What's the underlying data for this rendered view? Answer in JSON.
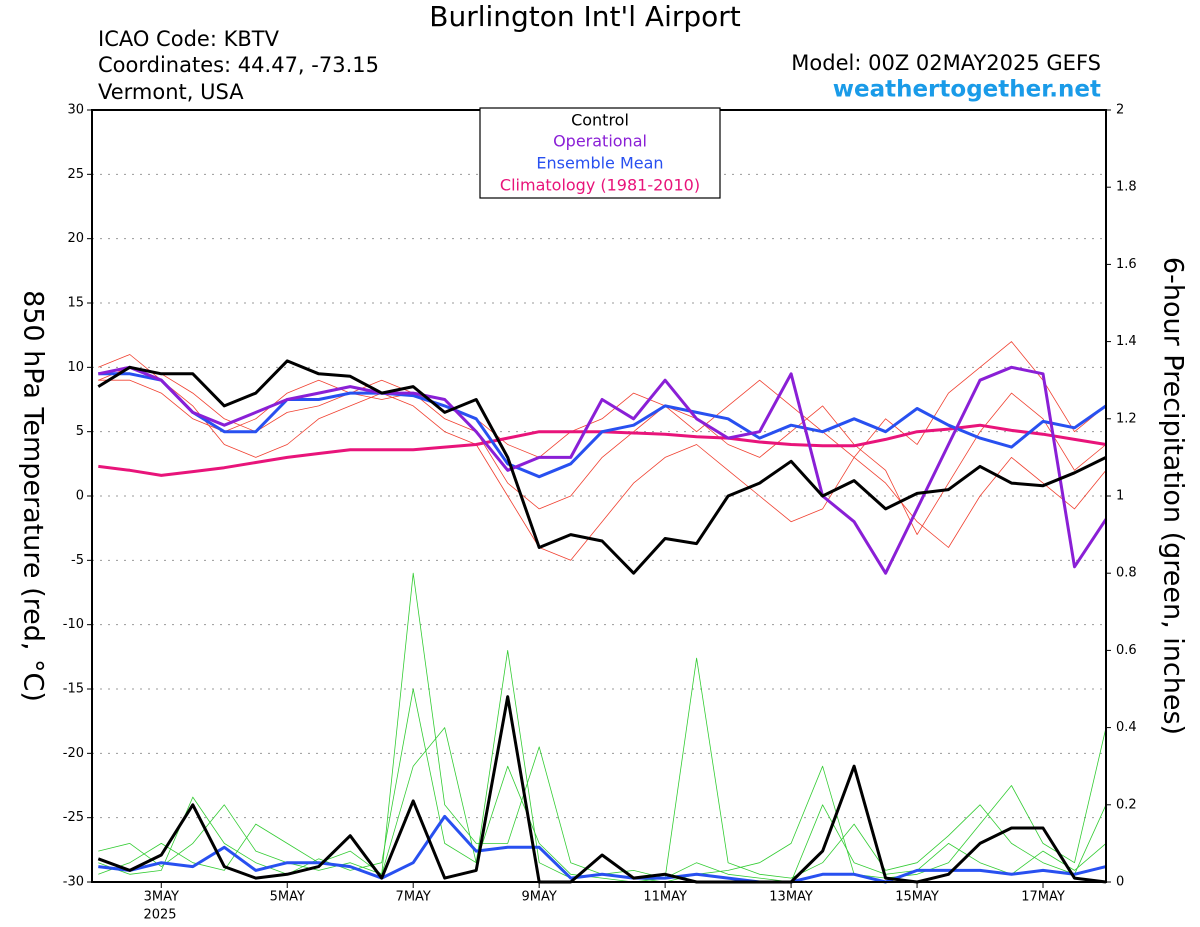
{
  "chart_data": {
    "type": "line",
    "title": "Burlington Int'l Airport",
    "info": [
      "ICAO Code: KBTV",
      "Coordinates: 44.47, -73.15",
      "Vermont, USA"
    ],
    "model": "Model: 00Z 02MAY2025 GEFS",
    "source": "weathertogether.net",
    "ylabel": "850 hPa Temperature (red, °C)",
    "y2label": "6-hour Precipitation (green, inches)",
    "x_year_label": "2025",
    "xlim": [
      1.9,
      18.0
    ],
    "xticks": [
      {
        "value": 3,
        "label": "3MAY"
      },
      {
        "value": 5,
        "label": "5MAY"
      },
      {
        "value": 7,
        "label": "7MAY"
      },
      {
        "value": 9,
        "label": "9MAY"
      },
      {
        "value": 11,
        "label": "11MAY"
      },
      {
        "value": 13,
        "label": "13MAY"
      },
      {
        "value": 15,
        "label": "15MAY"
      },
      {
        "value": 17,
        "label": "17MAY"
      }
    ],
    "ylim": [
      -30,
      30
    ],
    "yticks": [
      -30,
      -25,
      -20,
      -15,
      -10,
      -5,
      0,
      5,
      10,
      15,
      20,
      25,
      30
    ],
    "y2lim": [
      0,
      2
    ],
    "y2ticks": [
      0,
      0.2,
      0.4,
      0.6,
      0.8,
      1,
      1.2,
      1.4,
      1.6,
      1.8,
      2
    ],
    "grid": true,
    "x": [
      2,
      2.5,
      3,
      3.5,
      4,
      4.5,
      5,
      5.5,
      6,
      6.5,
      7,
      7.5,
      8,
      8.5,
      9,
      9.5,
      10,
      10.5,
      11,
      11.5,
      12,
      12.5,
      13,
      13.5,
      14,
      14.5,
      15,
      15.5,
      16,
      16.5,
      17,
      17.5,
      18
    ],
    "series": [
      {
        "color": "#f04030",
        "values": [
          9,
          10,
          9.5,
          8,
          6,
          5,
          6.5,
          7,
          8,
          7.5,
          8,
          6,
          5,
          1,
          -1,
          0,
          3,
          5,
          7,
          6,
          4,
          3,
          5,
          7,
          4,
          2,
          -3,
          1,
          5,
          8,
          6,
          2,
          4
        ]
      },
      {
        "color": "#f04030",
        "values": [
          10,
          11,
          9,
          7,
          4,
          3,
          4,
          6,
          7,
          8,
          7,
          5,
          4,
          0,
          -4,
          -5,
          -2,
          1,
          3,
          4,
          2,
          0,
          -2,
          -1,
          3,
          6,
          4,
          8,
          10,
          12,
          9,
          5,
          7
        ]
      },
      {
        "color": "#f04030",
        "values": [
          9,
          9,
          8,
          6,
          5,
          6,
          8,
          9,
          8,
          9,
          8,
          7,
          6,
          4,
          3,
          5,
          6,
          8,
          7,
          5,
          7,
          9,
          7,
          5,
          3,
          1,
          -2,
          -4,
          0,
          3,
          1,
          -1,
          2
        ]
      },
      {
        "color": "#33cc33",
        "axis": "y2",
        "values": [
          0.05,
          0.02,
          0.03,
          0.22,
          0.1,
          0.05,
          0.02,
          0.06,
          0.03,
          0.05,
          0.5,
          0.1,
          0.05,
          0.3,
          0.1,
          0.02,
          0.01,
          0,
          0.01,
          0.05,
          0.02,
          0.01,
          0,
          0.2,
          0.05,
          0.02,
          0.03,
          0.1,
          0.05,
          0.02,
          0.08,
          0.03,
          0.1
        ]
      },
      {
        "color": "#33cc33",
        "axis": "y2",
        "values": [
          0.08,
          0.1,
          0.04,
          0.1,
          0.2,
          0.08,
          0.05,
          0.03,
          0.05,
          0.02,
          0.8,
          0.2,
          0.1,
          0.1,
          0.35,
          0.05,
          0.02,
          0.03,
          0.01,
          0.58,
          0.05,
          0.02,
          0.01,
          0.05,
          0.15,
          0.03,
          0.05,
          0.12,
          0.2,
          0.1,
          0.05,
          0.02,
          0.2
        ]
      },
      {
        "color": "#33cc33",
        "axis": "y2",
        "values": [
          0.02,
          0.05,
          0.1,
          0.05,
          0.03,
          0.15,
          0.1,
          0.05,
          0.08,
          0.02,
          0.3,
          0.4,
          0.05,
          0.6,
          0.05,
          0.01,
          0.02,
          0.01,
          0,
          0.02,
          0.03,
          0.05,
          0.1,
          0.3,
          0.02,
          0.01,
          0.02,
          0.05,
          0.15,
          0.25,
          0.1,
          0.05,
          0.4
        ]
      },
      {
        "color": "#2850f0",
        "axis": "y2",
        "values": [
          0.04,
          0.03,
          0.05,
          0.04,
          0.09,
          0.03,
          0.05,
          0.05,
          0.04,
          0.01,
          0.05,
          0.17,
          0.08,
          0.09,
          0.09,
          0.01,
          0.02,
          0.01,
          0.01,
          0.02,
          0.01,
          0,
          0,
          0.02,
          0.02,
          0,
          0.03,
          0.03,
          0.03,
          0.02,
          0.03,
          0.02,
          0.04
        ]
      },
      {
        "color": "#000000",
        "axis": "y2",
        "values": [
          0.06,
          0.03,
          0.07,
          0.2,
          0.04,
          0.01,
          0.02,
          0.04,
          0.12,
          0.01,
          0.21,
          0.01,
          0.03,
          0.48,
          0,
          0,
          0.07,
          0.01,
          0.02,
          0,
          0,
          0,
          0,
          0.08,
          0.3,
          0.01,
          0,
          0.02,
          0.1,
          0.14,
          0.14,
          0.01,
          0
        ]
      },
      {
        "name": "Climatology (1981-2010)",
        "color": "#e8147a",
        "values": [
          2.3,
          2.0,
          1.6,
          1.9,
          2.2,
          2.6,
          3.0,
          3.3,
          3.6,
          3.6,
          3.6,
          3.8,
          4.0,
          4.5,
          5.0,
          5.0,
          5.0,
          4.9,
          4.8,
          4.6,
          4.5,
          4.2,
          4.0,
          3.9,
          3.9,
          4.4,
          5.0,
          5.2,
          5.5,
          5.1,
          4.8,
          4.4,
          4.0
        ]
      },
      {
        "name": "Ensemble Mean",
        "color": "#2850f0",
        "values": [
          9.5,
          9.5,
          9,
          6.5,
          5,
          5,
          7.5,
          7.5,
          8,
          8,
          7.8,
          7,
          6,
          2.5,
          1.5,
          2.5,
          5,
          5.5,
          7,
          6.5,
          6,
          4.5,
          5.5,
          5,
          6,
          5,
          6.8,
          5.5,
          4.5,
          3.8,
          5.8,
          5.3,
          7
        ]
      },
      {
        "name": "Operational",
        "color": "#8a1fd6",
        "values": [
          9.5,
          10,
          9,
          6.5,
          5.5,
          6.5,
          7.5,
          8,
          8.5,
          8,
          8,
          7.5,
          5,
          2,
          3,
          3,
          7.5,
          6,
          9,
          6,
          4.5,
          5,
          9.5,
          0,
          -2,
          -6,
          -1,
          4,
          9,
          10,
          9.5,
          -5.5,
          -1.8
        ]
      },
      {
        "name": "Control",
        "color": "#000000",
        "values": [
          8.5,
          10,
          9.5,
          9.5,
          7,
          8,
          10.5,
          9.5,
          9.3,
          8,
          8.5,
          6.5,
          7.5,
          3,
          -4,
          -3,
          -3.5,
          -6,
          -3.3,
          -3.7,
          0,
          1,
          2.7,
          0,
          1.2,
          -1,
          0.2,
          0.5,
          2.3,
          1,
          0.8,
          1.8,
          3
        ]
      }
    ]
  }
}
